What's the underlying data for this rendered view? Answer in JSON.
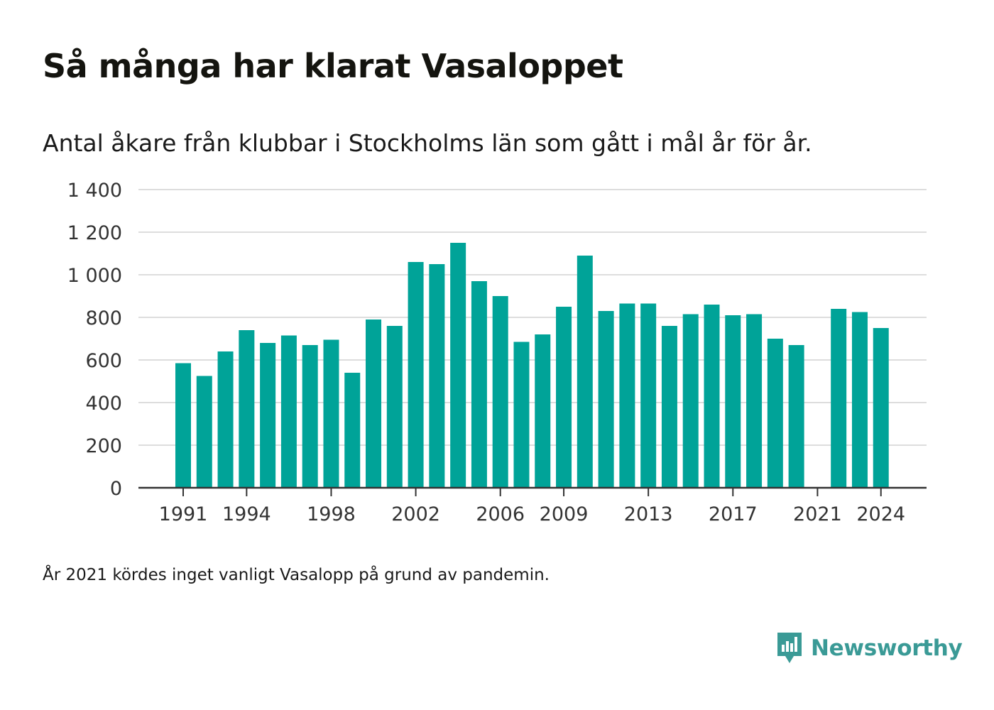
{
  "title": "Så många har klarat Vasaloppet",
  "subtitle": "Antal åkare från klubbar i Stockholms län som gått i mål år för år.",
  "note": "År 2021 kördes inget vanligt Vasalopp på grund av pandemin.",
  "brand": {
    "name": "Newsworthy",
    "icon": "newsworthy-logo-icon"
  },
  "colors": {
    "bar": "#00a398",
    "grid": "#dddddd",
    "axis": "#333333",
    "brand": "#3a9a96"
  },
  "chart_data": {
    "type": "bar",
    "categories": [
      1991,
      1992,
      1993,
      1994,
      1995,
      1996,
      1997,
      1998,
      1999,
      2000,
      2001,
      2002,
      2003,
      2004,
      2005,
      2006,
      2007,
      2008,
      2009,
      2010,
      2011,
      2012,
      2013,
      2014,
      2015,
      2016,
      2017,
      2018,
      2019,
      2020,
      2021,
      2022,
      2023,
      2024
    ],
    "values": [
      585,
      525,
      640,
      740,
      680,
      715,
      670,
      695,
      540,
      790,
      760,
      1060,
      1050,
      1150,
      970,
      900,
      685,
      720,
      850,
      1090,
      830,
      865,
      865,
      760,
      815,
      860,
      810,
      815,
      700,
      670,
      null,
      840,
      825,
      750
    ],
    "xticks": [
      "1991",
      "1994",
      "1998",
      "2002",
      "2006",
      "2009",
      "2013",
      "2017",
      "2021",
      "2024"
    ],
    "yticks": [
      0,
      200,
      400,
      600,
      800,
      1000,
      1200,
      1400
    ],
    "ytick_labels": [
      "0",
      "200",
      "400",
      "600",
      "800",
      "1 000",
      "1 200",
      "1 400"
    ],
    "ylim": [
      0,
      1400
    ],
    "grid": true,
    "xlabel": "",
    "ylabel": ""
  }
}
